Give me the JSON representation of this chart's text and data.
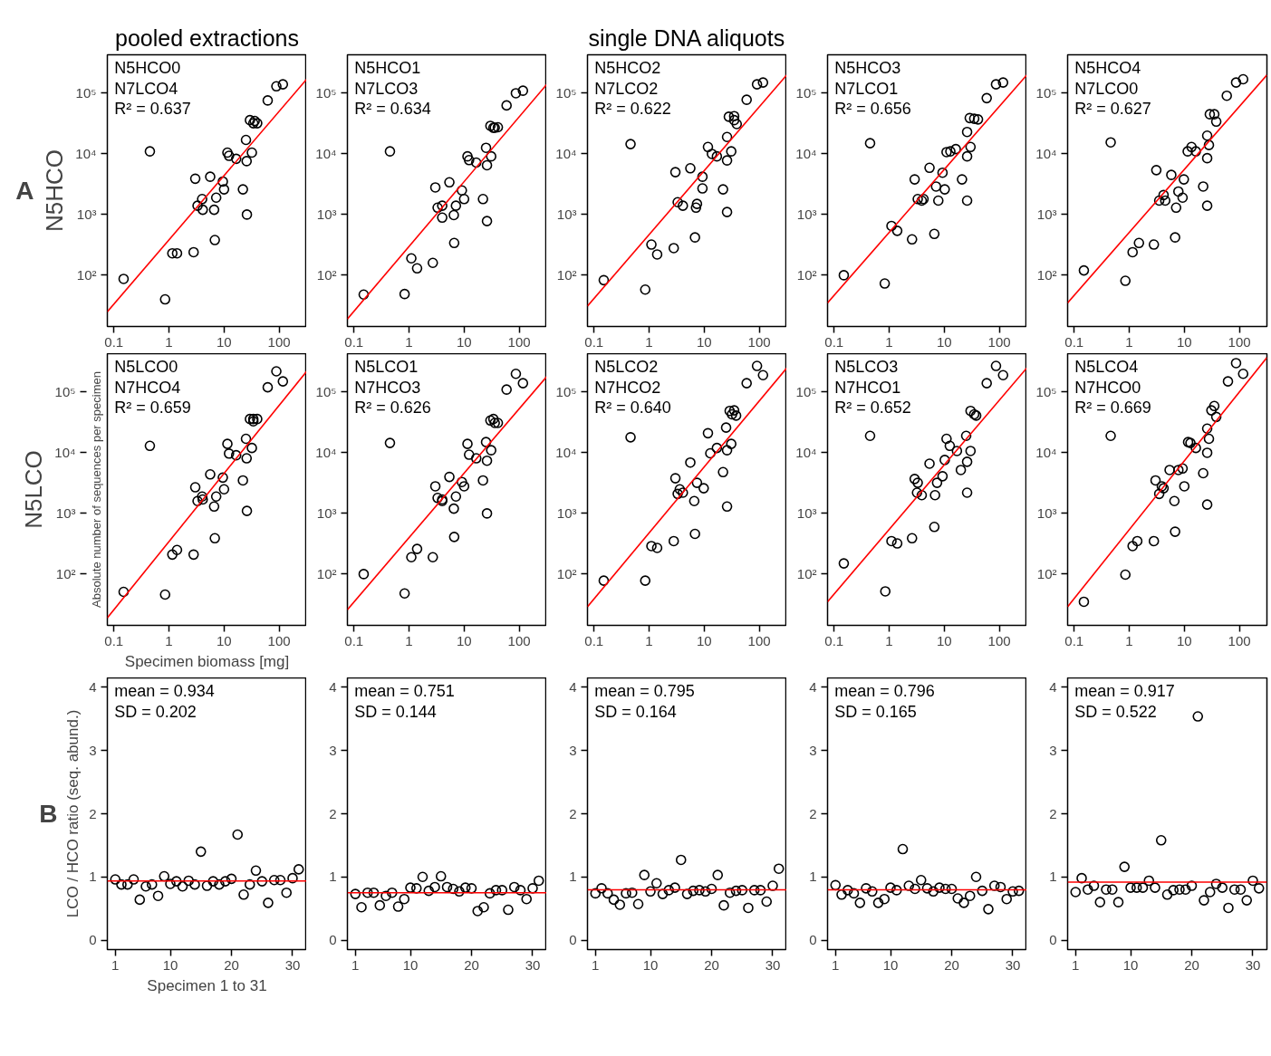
{
  "chart_data": [
    {
      "type": "scatter",
      "title": "pooled extractions",
      "subtitle": "A",
      "ylabel": "N5HCO",
      "log": "xy",
      "xlim": [
        0.076,
        316
      ],
      "ylim": [
        14.3,
        430000
      ],
      "xticks": [
        0.1,
        1,
        10,
        100
      ],
      "yticks": [
        {
          "value": 100,
          "label": "10²"
        },
        {
          "value": 1000,
          "label": "10³"
        },
        {
          "value": 10000,
          "label": "10⁴"
        },
        {
          "value": 100000,
          "label": "10⁵"
        }
      ],
      "annotations": [
        "N5HCO0",
        "N7LCO4",
        "R² = 0.637"
      ],
      "series": [
        {
          "type": "scatter",
          "marker": "circle",
          "color": "#000000",
          "x": [
            0.15,
            0.45,
            0.85,
            1.15,
            1.4,
            2.8,
            3.0,
            4.0,
            3.3,
            4.1,
            5.6,
            6.8,
            6.6,
            7.2,
            9.5,
            10,
            11.5,
            12.3,
            16.6,
            22,
            26,
            25.7,
            32,
            25,
            29.5,
            34,
            40,
            62,
            89,
            117,
            36
          ],
          "values": [
            87,
            11000,
            40,
            230,
            230,
            240,
            3900,
            1800,
            1400,
            1200,
            4200,
            380,
            1200,
            1900,
            3500,
            2600,
            10500,
            9300,
            8300,
            2600,
            1000,
            7600,
            10500,
            17000,
            36000,
            32000,
            32000,
            76000,
            130000,
            140000,
            35000
          ]
        },
        {
          "type": "line",
          "color": "#ff0000",
          "x": [
            0.076,
            316
          ],
          "values": [
            25,
            170000
          ]
        }
      ]
    },
    {
      "type": "scatter",
      "log": "xy",
      "xlim": [
        0.076,
        316
      ],
      "ylim": [
        14.3,
        430000
      ],
      "xticks": [
        0.1,
        1,
        10,
        100
      ],
      "yticks": [
        {
          "value": 100,
          "label": "10²"
        },
        {
          "value": 1000,
          "label": "10³"
        },
        {
          "value": 10000,
          "label": "10⁴"
        },
        {
          "value": 100000,
          "label": "10⁵"
        }
      ],
      "annotations": [
        "N5HCO1",
        "N7LCO3",
        "R² = 0.634"
      ],
      "series": [
        {
          "type": "scatter",
          "marker": "circle",
          "color": "#000000",
          "x": [
            0.15,
            0.45,
            0.83,
            1.1,
            1.4,
            2.7,
            3.0,
            3.3,
            4.0,
            4.0,
            5.4,
            6.6,
            6.5,
            7.1,
            9.1,
            10,
            11.5,
            12.3,
            16.6,
            22,
            26,
            26,
            31,
            25,
            30,
            34,
            41,
            59,
            87,
            117,
            36
          ],
          "values": [
            48,
            11000,
            49,
            190,
            130,
            160,
            2800,
            1300,
            1400,
            890,
            3400,
            340,
            980,
            1400,
            2500,
            1800,
            9100,
            7900,
            7200,
            1800,
            780,
            6500,
            9100,
            12600,
            29000,
            27000,
            27500,
            63000,
            100000,
            110000,
            27000
          ]
        },
        {
          "type": "line",
          "color": "#ff0000",
          "x": [
            0.076,
            316
          ],
          "values": [
            19,
            140000
          ]
        }
      ]
    },
    {
      "type": "scatter",
      "title": "single DNA aliquots",
      "log": "xy",
      "xlim": [
        0.076,
        316
      ],
      "ylim": [
        14.3,
        430000
      ],
      "xticks": [
        0.1,
        1,
        10,
        100
      ],
      "yticks": [
        {
          "value": 100,
          "label": "10²"
        },
        {
          "value": 1000,
          "label": "10³"
        },
        {
          "value": 10000,
          "label": "10⁴"
        },
        {
          "value": 100000,
          "label": "10⁵"
        }
      ],
      "annotations": [
        "N5HCO2",
        "N7LCO2",
        "R² = 0.622"
      ],
      "series": [
        {
          "type": "scatter",
          "marker": "circle",
          "color": "#000000",
          "x": [
            0.15,
            0.46,
            0.85,
            1.1,
            1.4,
            3.0,
            2.8,
            5.6,
            3.3,
            4.1,
            6.8,
            7.4,
            7.1,
            9.3,
            9.3,
            11.7,
            13.8,
            17,
            22,
            26,
            26,
            31,
            26,
            28,
            35,
            39,
            35,
            59,
            91,
            117
          ],
          "values": [
            83,
            14500,
            58,
            320,
            220,
            5000,
            280,
            5800,
            1600,
            1400,
            420,
            1500,
            1300,
            4200,
            2700,
            13000,
            10000,
            9100,
            2600,
            1100,
            7800,
            11000,
            19000,
            41000,
            42000,
            31000,
            36000,
            78000,
            140000,
            150000
          ]
        },
        {
          "type": "line",
          "color": "#ff0000",
          "x": [
            0.076,
            316
          ],
          "values": [
            31,
            200000
          ]
        }
      ]
    },
    {
      "type": "scatter",
      "log": "xy",
      "xlim": [
        0.076,
        316
      ],
      "ylim": [
        14.3,
        430000
      ],
      "xticks": [
        0.1,
        1,
        10,
        100
      ],
      "yticks": [
        {
          "value": 100,
          "label": "10²"
        },
        {
          "value": 1000,
          "label": "10³"
        },
        {
          "value": 10000,
          "label": "10⁴"
        },
        {
          "value": 100000,
          "label": "10⁵"
        }
      ],
      "annotations": [
        "N5HCO3",
        "N7LCO1",
        "R² = 0.656"
      ],
      "series": [
        {
          "type": "scatter",
          "marker": "circle",
          "color": "#000000",
          "x": [
            0.15,
            0.45,
            0.83,
            1.1,
            1.4,
            2.6,
            2.9,
            3.3,
            3.9,
            4.2,
            5.4,
            6.6,
            7.1,
            7.8,
            9.3,
            10.2,
            11,
            12.9,
            16.2,
            21,
            26,
            26,
            30,
            26,
            29,
            35,
            41,
            59,
            87,
            117
          ],
          "values": [
            100,
            15000,
            73,
            650,
            540,
            390,
            3800,
            1800,
            1700,
            1800,
            5900,
            480,
            2900,
            1700,
            4900,
            2600,
            10700,
            11000,
            12000,
            3800,
            1700,
            9100,
            13000,
            23000,
            39000,
            38000,
            37000,
            83000,
            140000,
            150000
          ]
        },
        {
          "type": "line",
          "color": "#ff0000",
          "x": [
            0.076,
            316
          ],
          "values": [
            35,
            200000
          ]
        }
      ]
    },
    {
      "type": "scatter",
      "log": "xy",
      "xlim": [
        0.076,
        316
      ],
      "ylim": [
        14.3,
        430000
      ],
      "xticks": [
        0.1,
        1,
        10,
        100
      ],
      "yticks": [
        {
          "value": 100,
          "label": "10²"
        },
        {
          "value": 1000,
          "label": "10³"
        },
        {
          "value": 10000,
          "label": "10⁴"
        },
        {
          "value": 100000,
          "label": "10⁵"
        }
      ],
      "annotations": [
        "N5HCO4",
        "N7LCO0",
        "R² = 0.627"
      ],
      "series": [
        {
          "type": "scatter",
          "marker": "circle",
          "color": "#000000",
          "x": [
            0.15,
            0.46,
            0.85,
            1.15,
            1.5,
            2.8,
            3.1,
            3.5,
            4.2,
            4.5,
            5.8,
            6.8,
            7.1,
            7.8,
            9.8,
            9.3,
            11.5,
            13.5,
            16.2,
            22,
            26,
            26,
            28,
            26,
            29,
            35,
            38,
            59,
            87,
            117
          ],
          "values": [
            120,
            15500,
            81,
            240,
            340,
            320,
            5400,
            1700,
            2100,
            1700,
            4500,
            420,
            1300,
            2400,
            3800,
            1900,
            11000,
            13000,
            11000,
            2900,
            1400,
            8500,
            14000,
            20000,
            45000,
            45000,
            34000,
            91000,
            150000,
            170000
          ]
        },
        {
          "type": "line",
          "color": "#ff0000",
          "x": [
            0.076,
            316
          ],
          "values": [
            35,
            200000
          ]
        }
      ]
    },
    {
      "type": "scatter",
      "ylabel": "N5LCO",
      "xlabel": "Specimen biomass [mg]",
      "log": "xy",
      "xlim": [
        0.076,
        316
      ],
      "ylim": [
        14.3,
        430000
      ],
      "xticks": [
        0.1,
        1,
        10,
        100
      ],
      "yticks": [
        {
          "value": 100,
          "label": "10²"
        },
        {
          "value": 1000,
          "label": "10³"
        },
        {
          "value": 10000,
          "label": "10⁴"
        },
        {
          "value": 100000,
          "label": "10⁵"
        }
      ],
      "annotations": [
        "N5LCO0",
        "N7HCO4",
        "R² = 0.659",
        "Absolute number of sequences per specimen"
      ],
      "series": [
        {
          "type": "scatter",
          "marker": "circle",
          "color": "#000000",
          "x": [
            0.15,
            0.45,
            0.85,
            1.15,
            1.4,
            2.8,
            3.0,
            4.0,
            3.3,
            4.1,
            5.6,
            6.8,
            6.6,
            7.2,
            9.5,
            10,
            11.5,
            12.3,
            16.6,
            22,
            26,
            25.7,
            32,
            25,
            29.5,
            34,
            40,
            62,
            89,
            117,
            34
          ],
          "values": [
            51,
            13000,
            46,
            210,
            250,
            210,
            2700,
            1900,
            1600,
            1700,
            4400,
            390,
            1300,
            1900,
            3900,
            2500,
            14000,
            9700,
            9100,
            3500,
            1100,
            8100,
            12000,
            17000,
            36000,
            36000,
            36000,
            120000,
            220000,
            150000,
            33000
          ]
        },
        {
          "type": "line",
          "color": "#ff0000",
          "x": [
            0.076,
            316
          ],
          "values": [
            19,
            220000
          ]
        }
      ]
    },
    {
      "type": "scatter",
      "log": "xy",
      "xlim": [
        0.076,
        316
      ],
      "ylim": [
        14.3,
        430000
      ],
      "xticks": [
        0.1,
        1,
        10,
        100
      ],
      "yticks": [
        {
          "value": 100,
          "label": "10²"
        },
        {
          "value": 1000,
          "label": "10³"
        },
        {
          "value": 10000,
          "label": "10⁴"
        },
        {
          "value": 100000,
          "label": "10⁵"
        }
      ],
      "annotations": [
        "N5LCO1",
        "N7HCO3",
        "R² = 0.626"
      ],
      "series": [
        {
          "type": "scatter",
          "marker": "circle",
          "color": "#000000",
          "x": [
            0.15,
            0.45,
            0.83,
            1.1,
            1.4,
            2.7,
            3.0,
            3.3,
            4.0,
            4.0,
            5.4,
            6.6,
            6.5,
            7.1,
            9.1,
            10,
            11.5,
            12.3,
            16.6,
            22,
            26,
            26,
            31,
            25,
            30,
            34,
            41,
            59,
            87,
            117,
            36
          ],
          "values": [
            100,
            14500,
            48,
            190,
            260,
            190,
            2800,
            1800,
            1700,
            1600,
            4000,
            410,
            1200,
            1900,
            3300,
            2800,
            14000,
            9300,
            8100,
            3500,
            1000,
            7400,
            11000,
            15000,
            34000,
            36000,
            31000,
            110000,
            200000,
            140000,
            31000
          ]
        },
        {
          "type": "line",
          "color": "#ff0000",
          "x": [
            0.076,
            316
          ],
          "values": [
            26,
            180000
          ]
        }
      ]
    },
    {
      "type": "scatter",
      "log": "xy",
      "xlim": [
        0.076,
        316
      ],
      "ylim": [
        14.3,
        430000
      ],
      "xticks": [
        0.1,
        1,
        10,
        100
      ],
      "yticks": [
        {
          "value": 100,
          "label": "10²"
        },
        {
          "value": 1000,
          "label": "10³"
        },
        {
          "value": 10000,
          "label": "10⁴"
        },
        {
          "value": 100000,
          "label": "10⁵"
        }
      ],
      "annotations": [
        "N5LCO2",
        "N7HCO2",
        "R² = 0.640"
      ],
      "series": [
        {
          "type": "scatter",
          "marker": "circle",
          "color": "#000000",
          "x": [
            0.15,
            0.46,
            0.85,
            1.1,
            1.4,
            2.8,
            3.0,
            3.3,
            3.6,
            4.1,
            5.6,
            6.8,
            6.6,
            7.4,
            9.8,
            11.7,
            12.9,
            17,
            22,
            26,
            26,
            31,
            25,
            29,
            35,
            38,
            32,
            59,
            91,
            117
          ],
          "values": [
            78,
            18000,
            78,
            290,
            270,
            350,
            3800,
            2100,
            2500,
            2200,
            6900,
            460,
            1600,
            3200,
            2600,
            21000,
            9800,
            12000,
            4800,
            1300,
            11000,
            14000,
            26000,
            49000,
            50000,
            41000,
            43000,
            140000,
            270000,
            190000
          ]
        },
        {
          "type": "line",
          "color": "#ff0000",
          "x": [
            0.076,
            316
          ],
          "values": [
            29,
            250000
          ]
        }
      ]
    },
    {
      "type": "scatter",
      "log": "xy",
      "xlim": [
        0.076,
        316
      ],
      "ylim": [
        14.3,
        430000
      ],
      "xticks": [
        0.1,
        1,
        10,
        100
      ],
      "yticks": [
        {
          "value": 100,
          "label": "10²"
        },
        {
          "value": 1000,
          "label": "10³"
        },
        {
          "value": 10000,
          "label": "10⁴"
        },
        {
          "value": 100000,
          "label": "10⁵"
        }
      ],
      "annotations": [
        "N5LCO3",
        "N7HCO1",
        "R² = 0.652"
      ],
      "series": [
        {
          "type": "scatter",
          "marker": "circle",
          "color": "#000000",
          "x": [
            0.15,
            0.45,
            0.85,
            1.1,
            1.4,
            2.6,
            2.9,
            3.2,
            3.3,
            3.9,
            5.4,
            6.6,
            6.8,
            7.4,
            9.3,
            11,
            10.2,
            12.6,
            17,
            20,
            26,
            26,
            30,
            25,
            30,
            35,
            38,
            59,
            87,
            117
          ],
          "values": [
            150,
            19000,
            52,
            350,
            320,
            390,
            3700,
            2200,
            3200,
            2000,
            6600,
            600,
            2000,
            3200,
            4100,
            17000,
            7600,
            13000,
            10700,
            5200,
            2200,
            7100,
            10700,
            19000,
            49000,
            43000,
            41000,
            140000,
            270000,
            190000
          ]
        },
        {
          "type": "line",
          "color": "#ff0000",
          "x": [
            0.076,
            316
          ],
          "values": [
            35,
            250000
          ]
        }
      ]
    },
    {
      "type": "scatter",
      "log": "xy",
      "xlim": [
        0.076,
        316
      ],
      "ylim": [
        14.3,
        430000
      ],
      "xticks": [
        0.1,
        1,
        10,
        100
      ],
      "yticks": [
        {
          "value": 100,
          "label": "10²"
        },
        {
          "value": 1000,
          "label": "10³"
        },
        {
          "value": 10000,
          "label": "10⁴"
        },
        {
          "value": 100000,
          "label": "10⁵"
        }
      ],
      "annotations": [
        "N5LCO4",
        "N7HCO0",
        "R² = 0.669"
      ],
      "series": [
        {
          "type": "scatter",
          "marker": "circle",
          "color": "#000000",
          "x": [
            0.15,
            0.46,
            0.85,
            1.15,
            1.4,
            2.8,
            3.0,
            3.5,
            3.9,
            4.2,
            5.4,
            6.8,
            6.6,
            7.8,
            10,
            9.3,
            11.7,
            12.9,
            16.2,
            22,
            26,
            26,
            28,
            26,
            31,
            35,
            38,
            62,
            87,
            117
          ],
          "values": [
            35,
            19000,
            98,
            290,
            350,
            350,
            3500,
            2100,
            2800,
            2600,
            5200,
            500,
            1600,
            5200,
            2800,
            5500,
            15000,
            14500,
            12000,
            4600,
            1400,
            10000,
            17000,
            25000,
            50000,
            59000,
            39000,
            150000,
            300000,
            200000
          ]
        },
        {
          "type": "line",
          "color": "#ff0000",
          "x": [
            0.076,
            316
          ],
          "values": [
            29,
            370000
          ]
        }
      ]
    },
    {
      "type": "scatter",
      "subtitle": "B",
      "ylabel": "LCO / HCO ratio (seq. abund.)",
      "xlabel": "Specimen 1 to 31",
      "xlim": [
        -0.3,
        32.3
      ],
      "ylim": [
        -0.15,
        4.15
      ],
      "xticks": [
        1,
        10,
        20,
        30
      ],
      "yticks": [
        0,
        1,
        2,
        3,
        4
      ],
      "annotations": [
        "mean = 0.934",
        "SD = 0.202"
      ],
      "ref_lines": [
        {
          "axis": "y",
          "value": 0.934,
          "color": "#ff0000"
        }
      ],
      "x": [
        1,
        2,
        3,
        4,
        5,
        6,
        7,
        8,
        9,
        10,
        11,
        12,
        13,
        14,
        15,
        16,
        17,
        18,
        19,
        20,
        21,
        22,
        23,
        24,
        25,
        26,
        27,
        28,
        29,
        30,
        31
      ],
      "series": [
        {
          "type": "scatter",
          "marker": "circle",
          "color": "#000000",
          "values": [
            0.96,
            0.88,
            0.88,
            0.96,
            0.64,
            0.85,
            0.88,
            0.7,
            1.01,
            0.89,
            0.93,
            0.85,
            0.94,
            0.88,
            1.4,
            0.86,
            0.93,
            0.88,
            0.93,
            0.97,
            1.67,
            0.72,
            0.88,
            1.1,
            0.93,
            0.59,
            0.95,
            0.95,
            0.75,
            0.98,
            1.12
          ]
        }
      ]
    },
    {
      "type": "scatter",
      "xlim": [
        -0.3,
        32.3
      ],
      "ylim": [
        -0.15,
        4.15
      ],
      "xticks": [
        1,
        10,
        20,
        30
      ],
      "yticks": [
        0,
        1,
        2,
        3,
        4
      ],
      "annotations": [
        "mean = 0.751",
        "SD = 0.144"
      ],
      "ref_lines": [
        {
          "axis": "y",
          "value": 0.751,
          "color": "#ff0000"
        }
      ],
      "x": [
        1,
        2,
        3,
        4,
        5,
        6,
        7,
        8,
        9,
        10,
        11,
        12,
        13,
        14,
        15,
        16,
        17,
        18,
        19,
        20,
        21,
        22,
        23,
        24,
        25,
        26,
        27,
        28,
        29,
        30,
        31
      ],
      "series": [
        {
          "type": "scatter",
          "marker": "circle",
          "color": "#000000",
          "values": [
            0.73,
            0.52,
            0.75,
            0.75,
            0.55,
            0.7,
            0.75,
            0.53,
            0.65,
            0.83,
            0.82,
            1.0,
            0.78,
            0.84,
            1.01,
            0.84,
            0.81,
            0.77,
            0.83,
            0.82,
            0.46,
            0.52,
            0.74,
            0.79,
            0.79,
            0.48,
            0.84,
            0.79,
            0.65,
            0.82,
            0.94
          ]
        }
      ]
    },
    {
      "type": "scatter",
      "xlim": [
        -0.3,
        32.3
      ],
      "ylim": [
        -0.15,
        4.15
      ],
      "xticks": [
        1,
        10,
        20,
        30
      ],
      "yticks": [
        0,
        1,
        2,
        3,
        4
      ],
      "annotations": [
        "mean = 0.795",
        "SD = 0.164"
      ],
      "ref_lines": [
        {
          "axis": "y",
          "value": 0.795,
          "color": "#ff0000"
        }
      ],
      "x": [
        1,
        2,
        3,
        4,
        5,
        6,
        7,
        8,
        9,
        10,
        11,
        12,
        13,
        14,
        15,
        16,
        17,
        18,
        19,
        20,
        21,
        22,
        23,
        24,
        25,
        26,
        27,
        28,
        29,
        30,
        31
      ],
      "series": [
        {
          "type": "scatter",
          "marker": "circle",
          "color": "#000000",
          "values": [
            0.74,
            0.82,
            0.74,
            0.64,
            0.56,
            0.74,
            0.75,
            0.57,
            1.03,
            0.77,
            0.9,
            0.73,
            0.79,
            0.83,
            1.27,
            0.73,
            0.78,
            0.79,
            0.77,
            0.81,
            1.03,
            0.55,
            0.75,
            0.78,
            0.79,
            0.51,
            0.79,
            0.79,
            0.61,
            0.86,
            1.13
          ]
        }
      ]
    },
    {
      "type": "scatter",
      "xlim": [
        -0.3,
        32.3
      ],
      "ylim": [
        -0.15,
        4.15
      ],
      "xticks": [
        1,
        10,
        20,
        30
      ],
      "yticks": [
        0,
        1,
        2,
        3,
        4
      ],
      "annotations": [
        "mean = 0.796",
        "SD = 0.165"
      ],
      "ref_lines": [
        {
          "axis": "y",
          "value": 0.796,
          "color": "#ff0000"
        }
      ],
      "x": [
        1,
        2,
        3,
        4,
        5,
        6,
        7,
        8,
        9,
        10,
        11,
        12,
        13,
        14,
        15,
        16,
        17,
        18,
        19,
        20,
        21,
        22,
        23,
        24,
        25,
        26,
        27,
        28,
        29,
        30,
        31
      ],
      "series": [
        {
          "type": "scatter",
          "marker": "circle",
          "color": "#000000",
          "values": [
            0.87,
            0.72,
            0.79,
            0.74,
            0.59,
            0.82,
            0.77,
            0.59,
            0.65,
            0.83,
            0.79,
            1.44,
            0.86,
            0.81,
            0.95,
            0.82,
            0.77,
            0.83,
            0.81,
            0.81,
            0.66,
            0.59,
            0.7,
            1.0,
            0.78,
            0.49,
            0.86,
            0.84,
            0.65,
            0.77,
            0.78
          ]
        }
      ]
    },
    {
      "type": "scatter",
      "xlim": [
        -0.3,
        32.3
      ],
      "ylim": [
        -0.15,
        4.15
      ],
      "xticks": [
        1,
        10,
        20,
        30
      ],
      "yticks": [
        0,
        1,
        2,
        3,
        4
      ],
      "annotations": [
        "mean = 0.917",
        "SD = 0.522"
      ],
      "ref_lines": [
        {
          "axis": "y",
          "value": 0.917,
          "color": "#ff0000"
        }
      ],
      "x": [
        1,
        2,
        3,
        4,
        5,
        6,
        7,
        8,
        9,
        10,
        11,
        12,
        13,
        14,
        15,
        16,
        17,
        18,
        19,
        20,
        21,
        22,
        23,
        24,
        25,
        26,
        27,
        28,
        29,
        30,
        31
      ],
      "series": [
        {
          "type": "scatter",
          "marker": "circle",
          "color": "#000000",
          "values": [
            0.76,
            0.98,
            0.8,
            0.86,
            0.6,
            0.8,
            0.8,
            0.6,
            1.16,
            0.83,
            0.83,
            0.83,
            0.94,
            0.83,
            1.58,
            0.72,
            0.79,
            0.8,
            0.8,
            0.86,
            3.54,
            0.63,
            0.76,
            0.89,
            0.83,
            0.51,
            0.8,
            0.8,
            0.63,
            0.94,
            0.82
          ]
        }
      ]
    }
  ]
}
